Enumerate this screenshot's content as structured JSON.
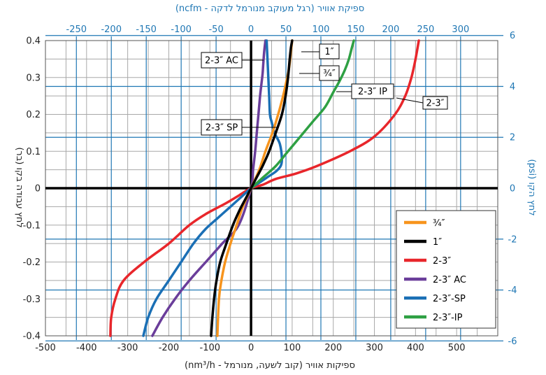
{
  "chart_data": {
    "type": "line",
    "title": "",
    "xlabel": "ספיקות אוויר (קוב לשעה, מנורמל - nm³/h)",
    "ylabel": "לחץ עבודה בקו (בר)",
    "x2label": "ספיקת אוויר (רגל מעוקב מנורמל לדקה - ncfm)",
    "y2label": "לחץ הקו (psi)",
    "xlim": [
      -500,
      600
    ],
    "ylim": [
      -0.4,
      0.4
    ],
    "x2lim": [
      -294.3,
      353.2
    ],
    "y2lim": [
      -5.8,
      5.8
    ],
    "x_ticks": [
      "-500",
      "-400",
      "-300",
      "-200",
      "-100",
      "0",
      "100",
      "200",
      "300",
      "400",
      "500"
    ],
    "y_ticks": [
      "-0.4",
      "-0.3",
      "-0.2",
      "-0.1",
      "0",
      "0.1",
      "0.2",
      "0.3",
      "0.4"
    ],
    "x2_ticks": [
      "-250",
      "-200",
      "-150",
      "-100",
      "-50",
      "0",
      "50",
      "100",
      "150",
      "200",
      "250",
      "300"
    ],
    "y2_ticks": [
      "-6",
      "-4",
      "-2",
      "0",
      "2",
      "4",
      "6"
    ],
    "grid": true,
    "legend_position": "bottom-right",
    "series": [
      {
        "name": "¾″",
        "color": "#f7941d",
        "x": [
          -82,
          -78,
          -72,
          -63,
          -50,
          -35,
          -20,
          0,
          20,
          35,
          52,
          66,
          78,
          88,
          93,
          97,
          100
        ],
        "y": [
          -0.4,
          -0.3,
          -0.25,
          -0.2,
          -0.15,
          -0.1,
          -0.05,
          0,
          0.05,
          0.1,
          0.15,
          0.2,
          0.25,
          0.3,
          0.33,
          0.37,
          0.4
        ]
      },
      {
        "name": "1″",
        "color": "#000000",
        "x": [
          -97,
          -94,
          -90,
          -84,
          -75,
          -60,
          -44,
          -28,
          -14,
          0,
          14,
          28,
          44,
          60,
          75,
          84,
          90,
          94,
          97,
          100
        ],
        "y": [
          -0.4,
          -0.35,
          -0.3,
          -0.25,
          -0.2,
          -0.15,
          -0.1,
          -0.06,
          -0.03,
          0,
          0.03,
          0.06,
          0.1,
          0.15,
          0.2,
          0.25,
          0.3,
          0.35,
          0.38,
          0.4
        ]
      },
      {
        "name": "2-3″",
        "color": "#e8262b",
        "x": [
          -342,
          -340,
          -330,
          -310,
          -260,
          -200,
          -150,
          -110,
          -60,
          -30,
          0,
          30,
          60,
          110,
          160,
          240,
          300,
          350,
          375,
          390,
          400,
          408
        ],
        "y": [
          -0.4,
          -0.35,
          -0.3,
          -0.25,
          -0.2,
          -0.15,
          -0.1,
          -0.07,
          -0.04,
          -0.02,
          0,
          0.01,
          0.025,
          0.04,
          0.06,
          0.1,
          0.14,
          0.2,
          0.25,
          0.3,
          0.35,
          0.4
        ]
      },
      {
        "name": "2-3″ AC",
        "color": "#6a3d9a",
        "x": [
          -240,
          -215,
          -185,
          -150,
          -110,
          -70,
          -30,
          0,
          5,
          10,
          14,
          18,
          22,
          25,
          28,
          30,
          32,
          35
        ],
        "y": [
          -0.4,
          -0.35,
          -0.3,
          -0.25,
          -0.2,
          -0.15,
          -0.1,
          0,
          0.05,
          0.1,
          0.15,
          0.2,
          0.25,
          0.28,
          0.31,
          0.34,
          0.37,
          0.4
        ]
      },
      {
        "name": "2-3″-SP",
        "color": "#1a6fb5",
        "x": [
          -262,
          -250,
          -230,
          -200,
          -170,
          -140,
          -110,
          -80,
          -50,
          -25,
          0,
          20,
          40,
          60,
          72,
          75,
          70,
          57,
          50,
          46,
          44,
          42,
          40,
          38
        ],
        "y": [
          -0.4,
          -0.35,
          -0.3,
          -0.25,
          -0.2,
          -0.15,
          -0.11,
          -0.08,
          -0.05,
          -0.025,
          0,
          0.015,
          0.03,
          0.045,
          0.06,
          0.08,
          0.12,
          0.15,
          0.18,
          0.2,
          0.25,
          0.3,
          0.35,
          0.4
        ]
      },
      {
        "name": "2-3″-IP",
        "color": "#2ea043",
        "x": [
          0,
          30,
          60,
          90,
          120,
          150,
          180,
          200,
          215,
          228,
          238,
          245,
          250
        ],
        "y": [
          0,
          0.03,
          0.06,
          0.1,
          0.14,
          0.18,
          0.22,
          0.26,
          0.29,
          0.32,
          0.35,
          0.38,
          0.4
        ]
      }
    ],
    "annotations": [
      {
        "label": "2-3″ AC",
        "series": "2-3″ AC"
      },
      {
        "label": "1″",
        "series": "1″"
      },
      {
        "label": "¾″",
        "series": "¾″"
      },
      {
        "label": "2-3″ IP",
        "series": "2-3″-IP"
      },
      {
        "label": "2-3″",
        "series": "2-3″"
      },
      {
        "label": "2-3″ SP",
        "series": "2-3″-SP"
      }
    ]
  }
}
